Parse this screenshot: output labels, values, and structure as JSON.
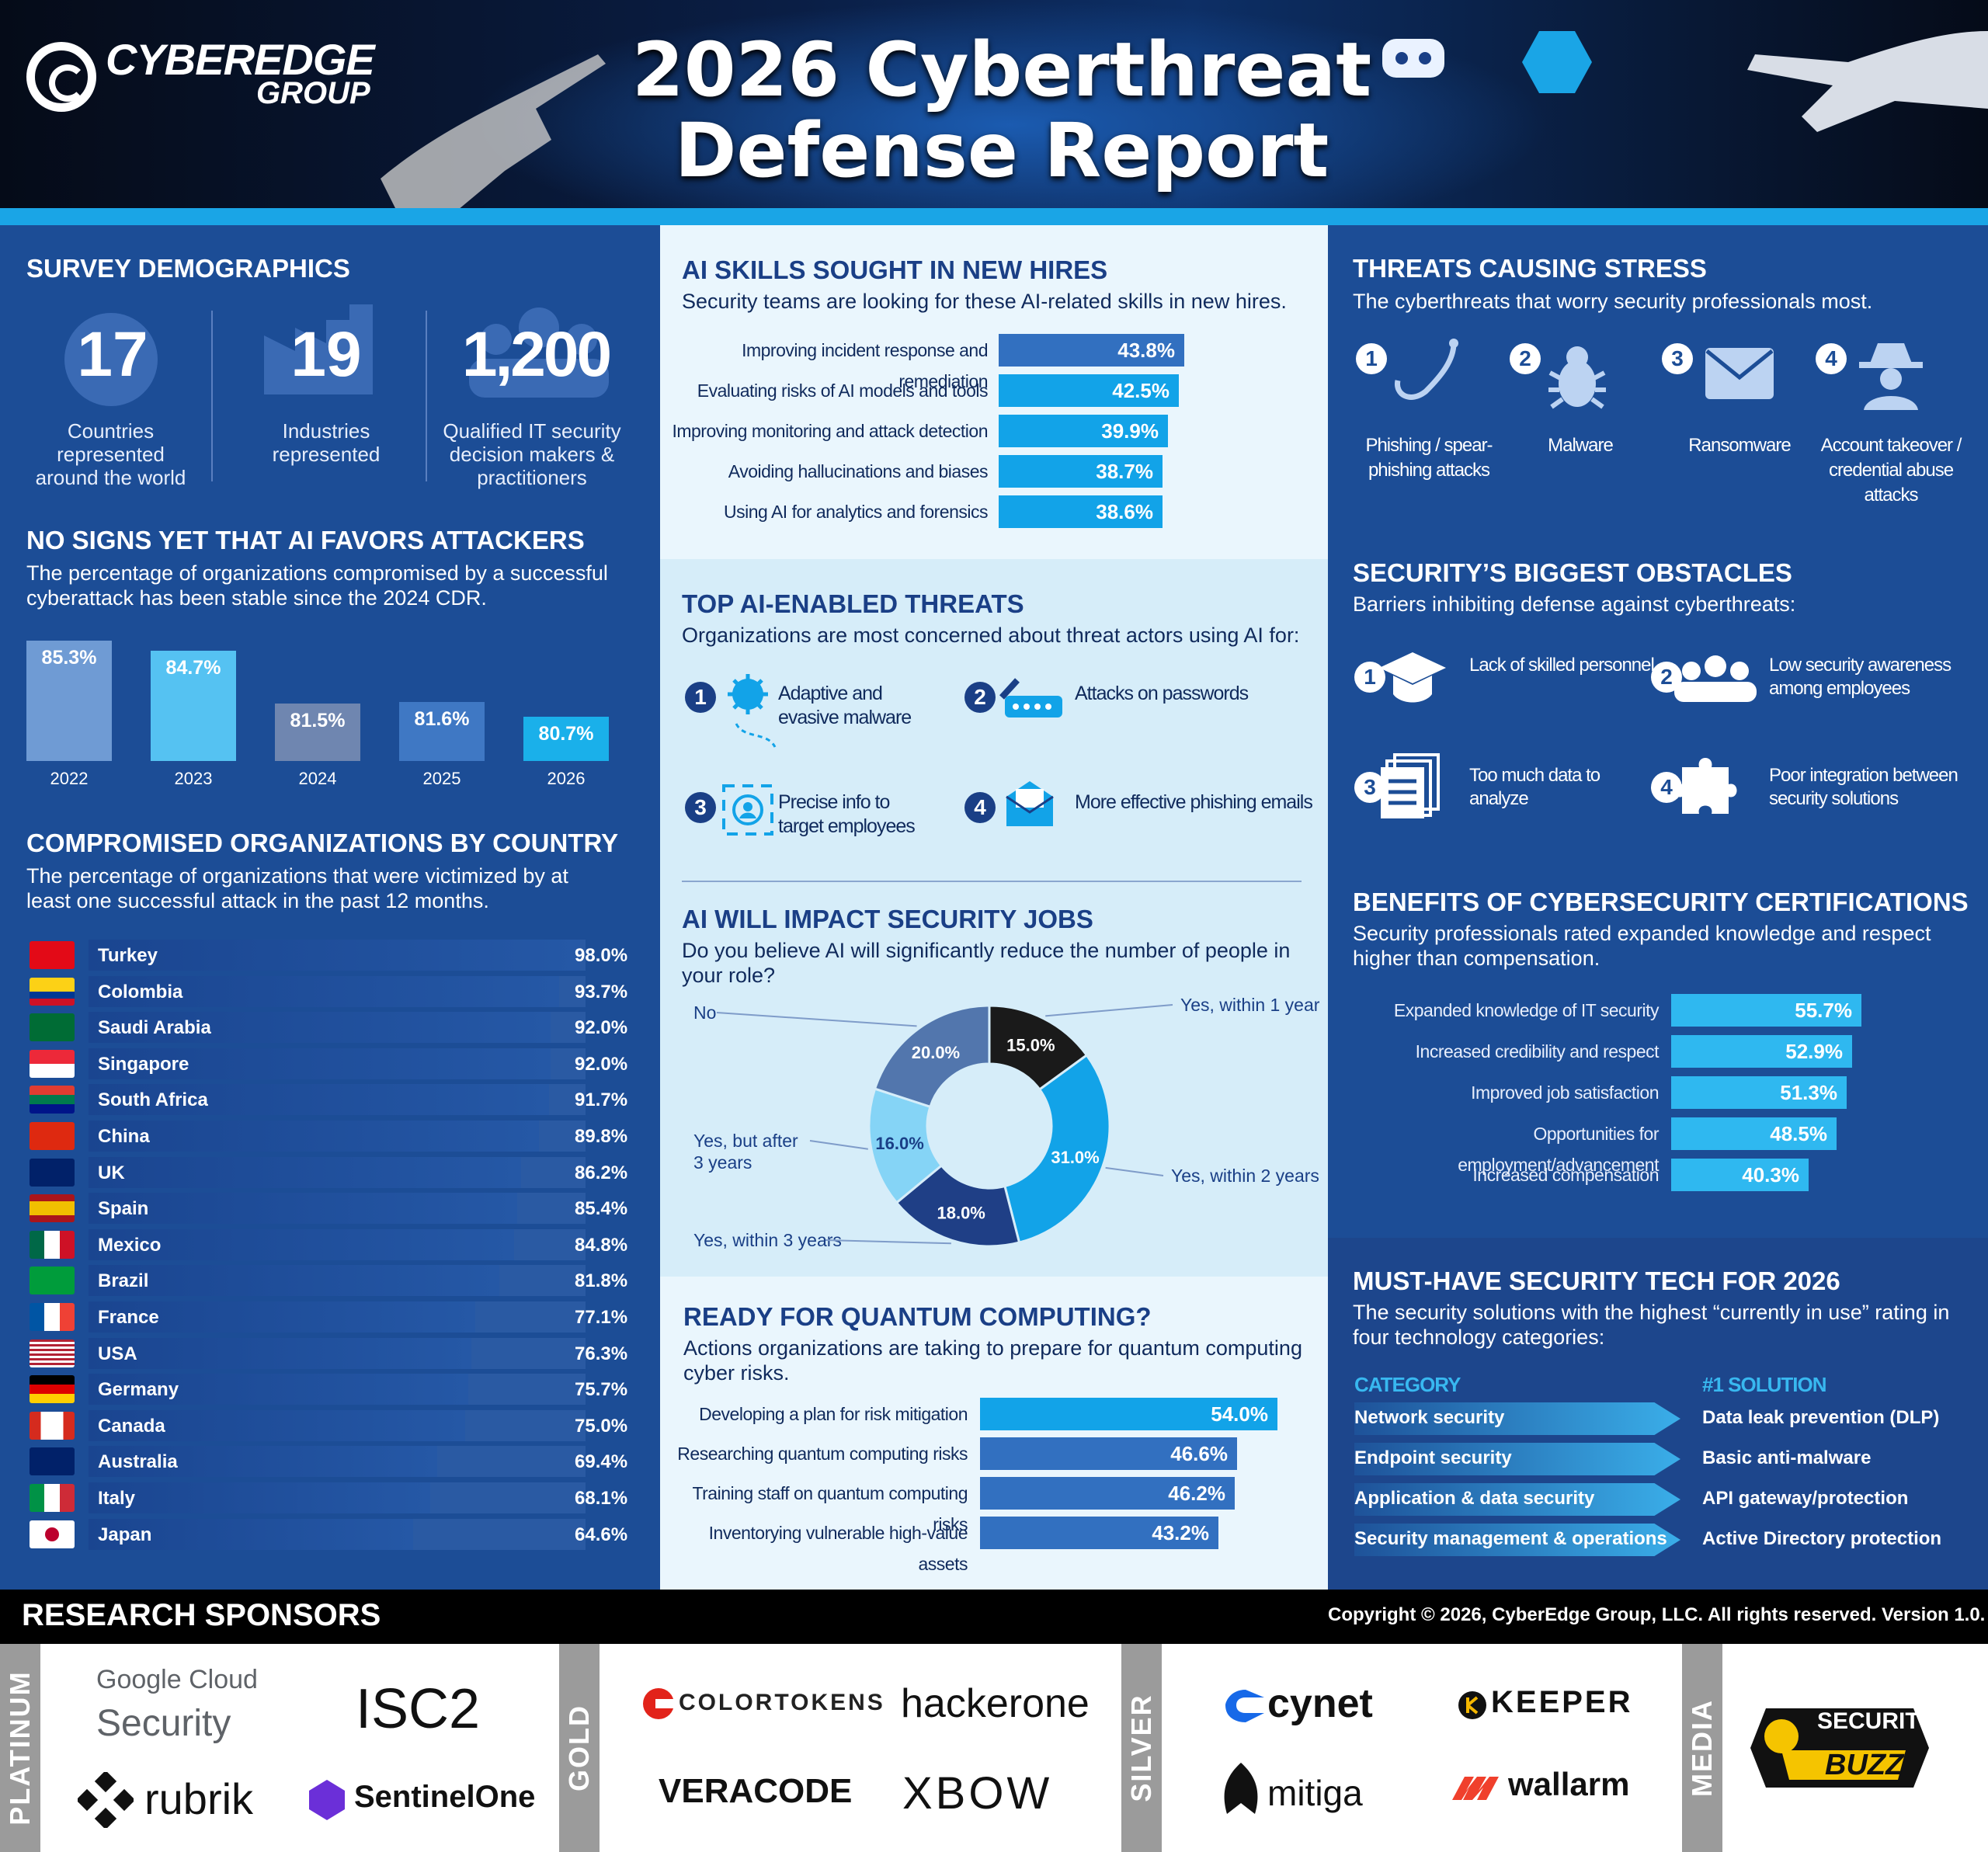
{
  "header": {
    "logo_line1": "CYBEREDGE",
    "logo_line2": "GROUP",
    "title_line1": "2026 Cyberthreat",
    "title_line2": "Defense Report"
  },
  "demographics": {
    "title": "SURVEY DEMOGRAPHICS",
    "stats": [
      {
        "value": "17",
        "label": "Countries represented around the world",
        "icon": "globe-icon"
      },
      {
        "value": "19",
        "label": "Industries represented",
        "icon": "industry-icon"
      },
      {
        "value": "1,200",
        "label": "Qualified IT security decision makers & practitioners",
        "icon": "people-icon"
      }
    ]
  },
  "ai_attackers": {
    "title": "NO SIGNS YET THAT AI FAVORS ATTACKERS",
    "subtitle": "The percentage of organizations compromised by a successful cyberattack has been stable since the 2024 CDR.",
    "chart_data": {
      "type": "bar",
      "categories": [
        "2022",
        "2023",
        "2024",
        "2025",
        "2026"
      ],
      "values": [
        85.3,
        84.7,
        81.5,
        81.6,
        80.7
      ],
      "labels": [
        "85.3%",
        "84.7%",
        "81.5%",
        "81.6%",
        "80.7%"
      ],
      "colors": [
        "#6f9bd4",
        "#55c2f2",
        "#6f86b0",
        "#3f78c4",
        "#1ab0ea"
      ]
    }
  },
  "country": {
    "title": "COMPROMISED ORGANIZATIONS BY COUNTRY",
    "subtitle": "The percentage of organizations that were victimized by at least one successful attack in the past 12 months.",
    "chart_data": {
      "type": "bar",
      "categories": [
        "Turkey",
        "Colombia",
        "Saudi Arabia",
        "Singapore",
        "South Africa",
        "China",
        "UK",
        "Spain",
        "Mexico",
        "Brazil",
        "France",
        "USA",
        "Germany",
        "Canada",
        "Australia",
        "Italy",
        "Japan"
      ],
      "values": [
        98.0,
        93.7,
        92.0,
        92.0,
        91.7,
        89.8,
        86.2,
        85.4,
        84.8,
        81.8,
        77.1,
        76.3,
        75.7,
        75.0,
        69.4,
        68.1,
        64.6
      ],
      "labels": [
        "98.0%",
        "93.7%",
        "92.0%",
        "92.0%",
        "91.7%",
        "89.8%",
        "86.2%",
        "85.4%",
        "84.8%",
        "81.8%",
        "77.1%",
        "76.3%",
        "75.7%",
        "75.0%",
        "69.4%",
        "68.1%",
        "64.6%"
      ]
    }
  },
  "ai_skills": {
    "title": "AI SKILLS SOUGHT IN NEW HIRES",
    "subtitle": "Security teams are looking for these AI-related skills in new hires.",
    "chart_data": {
      "type": "bar",
      "categories": [
        "Improving incident response and remediation",
        "Evaluating risks of AI models and tools",
        "Improving monitoring and attack detection",
        "Avoiding hallucinations and biases",
        "Using AI for analytics and forensics"
      ],
      "values": [
        43.8,
        42.5,
        39.9,
        38.7,
        38.6
      ],
      "labels": [
        "43.8%",
        "42.5%",
        "39.9%",
        "38.7%",
        "38.6%"
      ]
    }
  },
  "ai_threats": {
    "title": "TOP AI-ENABLED THREATS",
    "subtitle": "Organizations are most concerned about threat actors using AI for:",
    "items": [
      {
        "num": "1",
        "label": "Adaptive and evasive malware",
        "icon": "virus-icon"
      },
      {
        "num": "2",
        "label": "Attacks on passwords",
        "icon": "password-icon"
      },
      {
        "num": "3",
        "label": "Precise info to target employees",
        "icon": "target-icon"
      },
      {
        "num": "4",
        "label": "More effective phishing emails",
        "icon": "email-icon"
      }
    ]
  },
  "ai_jobs": {
    "title": "AI WILL IMPACT SECURITY JOBS",
    "subtitle": "Do you believe AI will significantly reduce the number of people in your role?",
    "chart_data": {
      "type": "pie",
      "categories": [
        "Yes, within 1 year",
        "Yes, within 2 years",
        "Yes, within 3 years",
        "Yes, but after 3 years",
        "No"
      ],
      "values": [
        15.0,
        31.0,
        18.0,
        16.0,
        20.0
      ],
      "labels": [
        "15.0%",
        "31.0%",
        "18.0%",
        "16.0%",
        "20.0%"
      ],
      "colors": [
        "#1a1a1a",
        "#12a3e8",
        "#1f3f86",
        "#85d4f6",
        "#5276ad"
      ]
    }
  },
  "quantum": {
    "title": "READY FOR QUANTUM COMPUTING?",
    "subtitle": "Actions organizations are taking to prepare for quantum computing cyber risks.",
    "chart_data": {
      "type": "bar",
      "categories": [
        "Developing a plan for risk mitigation",
        "Researching quantum computing risks",
        "Training staff on quantum computing risks",
        "Inventorying vulnerable high-value assets"
      ],
      "values": [
        54.0,
        46.6,
        46.2,
        43.2
      ],
      "labels": [
        "54.0%",
        "46.6%",
        "46.2%",
        "43.2%"
      ]
    }
  },
  "threats_stress": {
    "title": "THREATS CAUSING STRESS",
    "subtitle": "The cyberthreats that worry security professionals most.",
    "items": [
      {
        "num": "1",
        "label": "Phishing / spear-phishing attacks",
        "icon": "hook-icon"
      },
      {
        "num": "2",
        "label": "Malware",
        "icon": "bug-icon"
      },
      {
        "num": "3",
        "label": "Ransomware",
        "icon": "envelope-icon"
      },
      {
        "num": "4",
        "label": "Account takeover / credential abuse attacks",
        "icon": "spy-icon"
      }
    ]
  },
  "obstacles": {
    "title": "SECURITY’S BIGGEST OBSTACLES",
    "subtitle": "Barriers inhibiting defense against cyberthreats:",
    "items": [
      {
        "num": "1",
        "label": "Lack of skilled personnel",
        "icon": "graduation-cap-icon"
      },
      {
        "num": "2",
        "label": "Low security awareness among employees",
        "icon": "group-icon"
      },
      {
        "num": "3",
        "label": "Too much data to analyze",
        "icon": "documents-icon"
      },
      {
        "num": "4",
        "label": "Poor integration between security solutions",
        "icon": "puzzle-icon"
      }
    ]
  },
  "certs": {
    "title": "BENEFITS OF CYBERSECURITY CERTIFICATIONS",
    "subtitle": "Security professionals rated expanded knowledge and respect higher than compensation.",
    "chart_data": {
      "type": "bar",
      "categories": [
        "Expanded knowledge of IT security",
        "Increased credibility and respect",
        "Improved job satisfaction",
        "Opportunities for employment/advancement",
        "Increased compensation"
      ],
      "values": [
        55.7,
        52.9,
        51.3,
        48.5,
        40.3
      ],
      "labels": [
        "55.7%",
        "52.9%",
        "51.3%",
        "48.5%",
        "40.3%"
      ]
    }
  },
  "musthave": {
    "title": "MUST-HAVE SECURITY TECH FOR 2026",
    "subtitle": "The security solutions with the highest “currently in use” rating in four technology categories:",
    "col1": "CATEGORY",
    "col2": "#1 SOLUTION",
    "rows": [
      {
        "category": "Network security",
        "solution": "Data leak prevention (DLP)"
      },
      {
        "category": "Endpoint security",
        "solution": "Basic anti-malware"
      },
      {
        "category": "Application & data security",
        "solution": "API gateway/protection"
      },
      {
        "category": "Security management & operations",
        "solution": "Active Directory protection"
      }
    ]
  },
  "footer": {
    "sponsors_title": "RESEARCH SPONSORS",
    "copyright": "Copyright © 2026, CyberEdge Group, LLC. All rights reserved. Version 1.0.",
    "tiers": [
      "PLATINUM",
      "GOLD",
      "SILVER",
      "MEDIA"
    ],
    "platinum": [
      "Google Cloud",
      "Security",
      "ISC2",
      "rubrik",
      "SentinelOne"
    ],
    "gold": [
      "COLORTOKENS",
      "hackerone",
      "VERACODE",
      "XBOW"
    ],
    "silver": [
      "cynet",
      "KEEPER",
      "mitiga",
      "wallarm"
    ],
    "media": [
      "SECURITY",
      "BUZZ"
    ]
  }
}
